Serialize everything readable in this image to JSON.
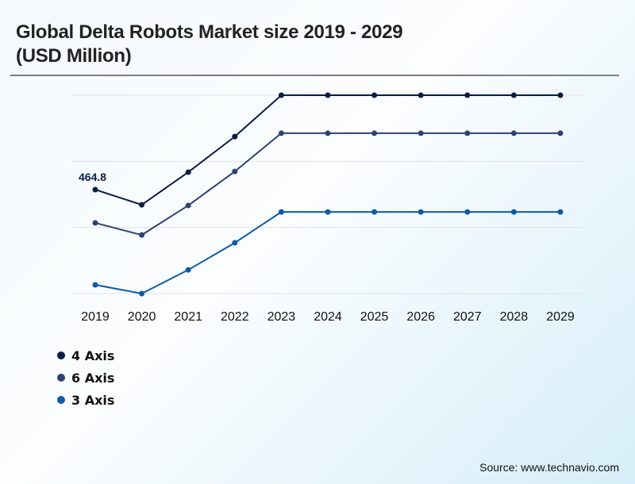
{
  "header": {
    "title_line1": "Global Delta Robots Market size 2019 - 2029",
    "title_line2": "(USD Million)"
  },
  "source": "Source: www.technavio.com",
  "chart_data": {
    "type": "line",
    "title": "Global Delta Robots Market size 2019 - 2029 (USD Million)",
    "xlabel": "",
    "ylabel": "",
    "categories": [
      "2019",
      "2020",
      "2021",
      "2022",
      "2023",
      "2024",
      "2025",
      "2026",
      "2027",
      "2028",
      "2029"
    ],
    "ylim": [
      0,
      887
    ],
    "grid": true,
    "legend_position": "bottom-left",
    "series": [
      {
        "name": "4 Axis",
        "color": "#0b1d45",
        "values": [
          464.8,
          397,
          543,
          702,
          887,
          887,
          887,
          887,
          887,
          887,
          887
        ]
      },
      {
        "name": "6 Axis",
        "color": "#2e4272",
        "values": [
          316,
          262,
          394,
          546,
          717,
          717,
          717,
          717,
          717,
          717,
          717
        ]
      },
      {
        "name": "3 Axis",
        "color": "#0e5aa7",
        "values": [
          39,
          0,
          106,
          227,
          365,
          365,
          365,
          365,
          365,
          365,
          365
        ]
      }
    ],
    "annotations": [
      {
        "series": "4 Axis",
        "category": "2019",
        "text": "464.8"
      }
    ]
  }
}
